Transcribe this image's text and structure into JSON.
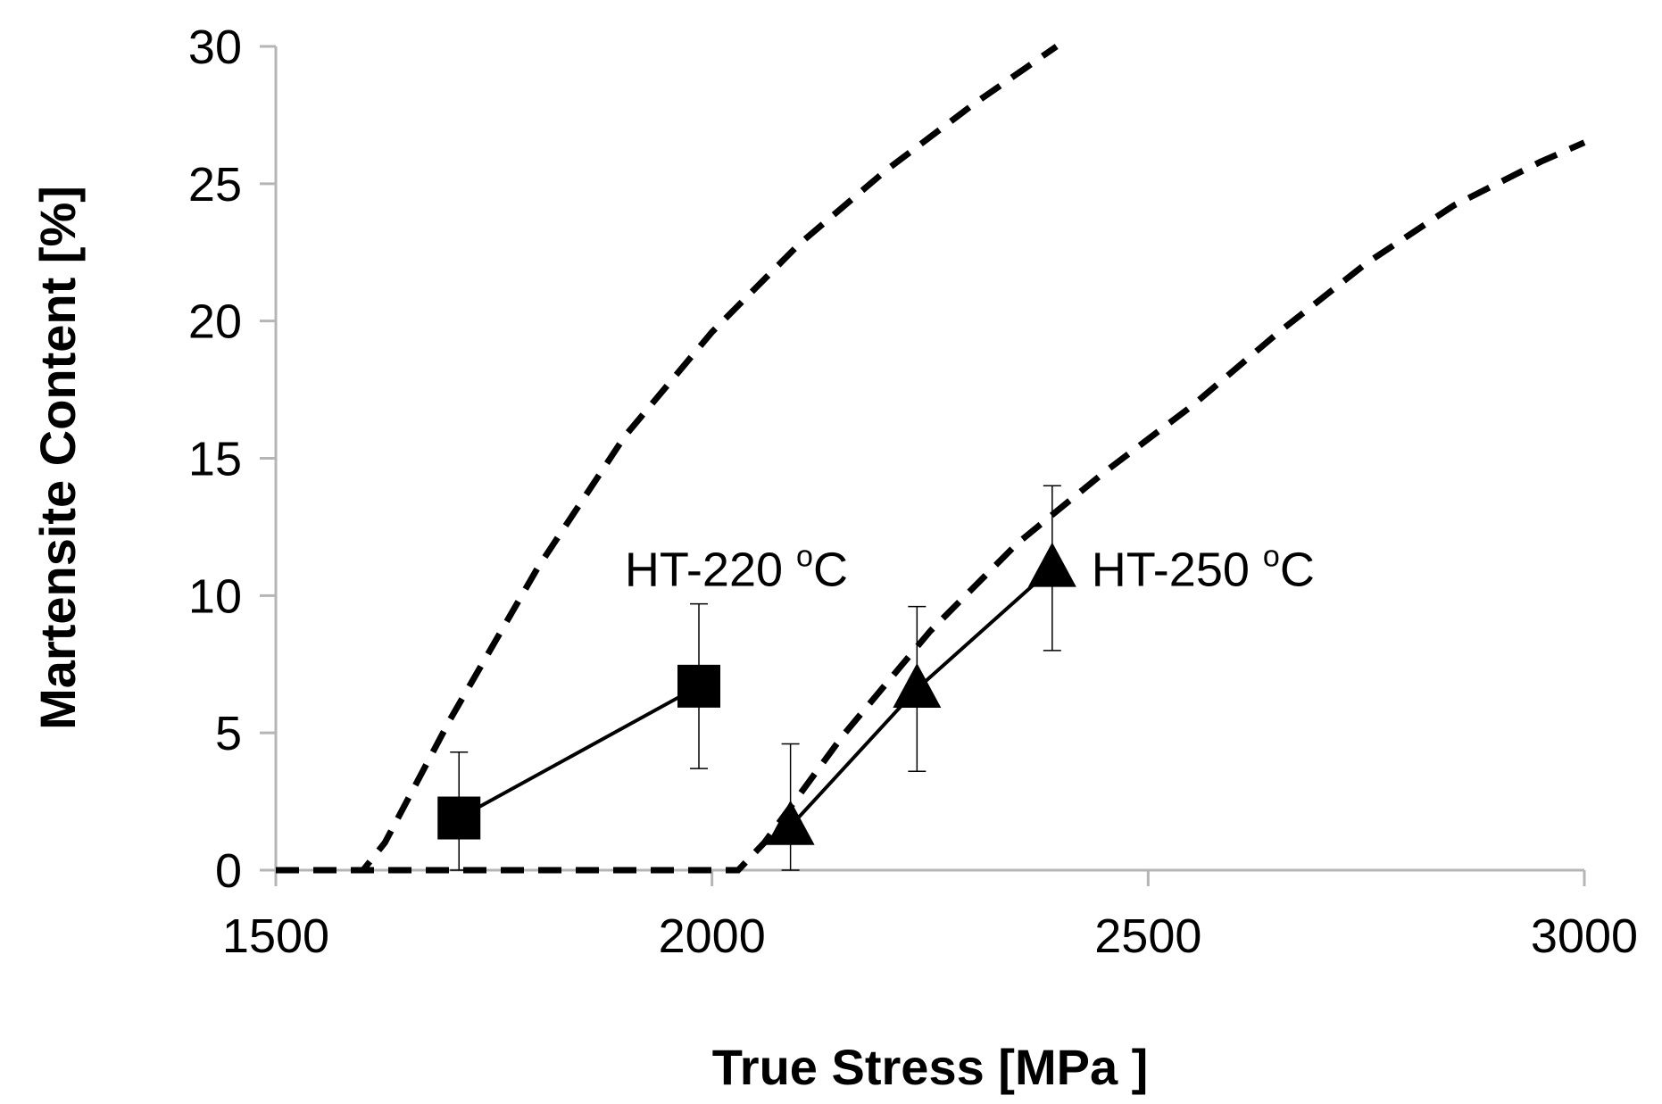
{
  "chart_data": {
    "type": "scatter",
    "xlabel": "True Stress [MPa ]",
    "ylabel": "Martensite Content [%]",
    "xlim": [
      1500,
      3000
    ],
    "ylim": [
      0,
      30
    ],
    "xticks": [
      1500,
      2000,
      2500,
      3000
    ],
    "yticks": [
      0,
      5,
      10,
      15,
      20,
      25,
      30
    ],
    "grid": false,
    "series": [
      {
        "name": "HT-220 oC",
        "label": "HT-220",
        "label_sup": "o",
        "label_unit": "C",
        "label_anchor": {
          "x": 1900,
          "y": 11
        },
        "marker": "square",
        "line": "solid",
        "points": [
          {
            "x": 1710,
            "y": 1.9,
            "err": 2.4
          },
          {
            "x": 1985,
            "y": 6.7,
            "err": 3.0
          }
        ]
      },
      {
        "name": "HT-250 oC",
        "label": "HT-250",
        "label_sup": "o",
        "label_unit": "C",
        "label_anchor": {
          "x": 2435,
          "y": 11
        },
        "marker": "triangle",
        "line": "solid",
        "points": [
          {
            "x": 2090,
            "y": 1.6,
            "err": 3.0
          },
          {
            "x": 2235,
            "y": 6.6,
            "err": 3.0
          },
          {
            "x": 2390,
            "y": 11.0,
            "err": 3.0
          }
        ]
      }
    ],
    "model_curves": [
      {
        "line": "dashed",
        "points": [
          {
            "x": 1500,
            "y": 0
          },
          {
            "x": 1600,
            "y": 0
          },
          {
            "x": 1625,
            "y": 1
          },
          {
            "x": 1700,
            "y": 5.5
          },
          {
            "x": 1800,
            "y": 11
          },
          {
            "x": 1900,
            "y": 15.8
          },
          {
            "x": 2000,
            "y": 19.6
          },
          {
            "x": 2100,
            "y": 22.8
          },
          {
            "x": 2200,
            "y": 25.5
          },
          {
            "x": 2300,
            "y": 27.9
          },
          {
            "x": 2395,
            "y": 30
          }
        ]
      },
      {
        "line": "dashed",
        "points": [
          {
            "x": 1500,
            "y": 0
          },
          {
            "x": 2030,
            "y": 0
          },
          {
            "x": 2060,
            "y": 1
          },
          {
            "x": 2150,
            "y": 4.9
          },
          {
            "x": 2250,
            "y": 8.7
          },
          {
            "x": 2350,
            "y": 11.9
          },
          {
            "x": 2450,
            "y": 14.5
          },
          {
            "x": 2550,
            "y": 16.9
          },
          {
            "x": 2650,
            "y": 19.6
          },
          {
            "x": 2750,
            "y": 22.1
          },
          {
            "x": 2850,
            "y": 24.2
          },
          {
            "x": 2950,
            "y": 25.8
          },
          {
            "x": 3000,
            "y": 26.5
          }
        ]
      }
    ]
  }
}
